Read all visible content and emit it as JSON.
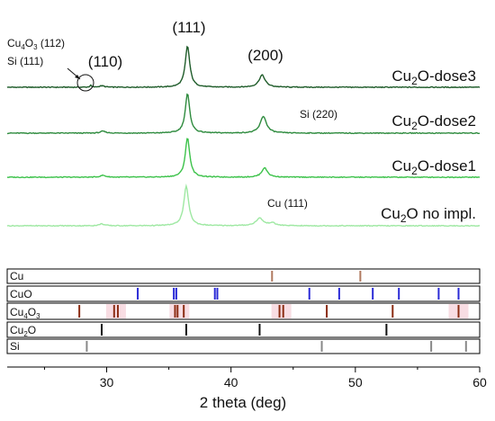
{
  "colors": {
    "dose3": "#1f5c2a",
    "dose2": "#2e8b3e",
    "dose1": "#3cc24a",
    "noimpl": "#9ee8a2",
    "Cu": "#b07a60",
    "CuO": "#2a2ad6",
    "Cu4O3": "#8b2c12",
    "Cu2O": "#111111",
    "Si": "#888888",
    "frame": "#000000",
    "highlight_Cu4O3": "#f8dde3"
  },
  "chart_data": {
    "type": "line",
    "xlabel": "2 theta (deg)",
    "xlim": [
      22,
      60
    ],
    "x_ticks": [
      30,
      40,
      50,
      60
    ],
    "x_tick_labels": [
      "30",
      "40",
      "50",
      "60"
    ],
    "series": [
      {
        "name": "Cu2O-dose3",
        "label_main": "Cu",
        "label_sub": "2",
        "label_rest": "O-dose3",
        "color_key": "dose3",
        "offset": 3,
        "peaks": [
          {
            "x": 36.5,
            "h": 0.88,
            "w": 0.22
          },
          {
            "x": 42.5,
            "h": 0.26,
            "w": 0.3
          },
          {
            "x": 29.6,
            "h": 0.03,
            "w": 0.25
          },
          {
            "x": 28.7,
            "h": 0.04,
            "w": 0.08
          }
        ]
      },
      {
        "name": "Cu2O-dose2",
        "label_main": "Cu",
        "label_sub": "2",
        "label_rest": "O-dose2",
        "color_key": "dose2",
        "offset": 2,
        "peaks": [
          {
            "x": 36.5,
            "h": 0.84,
            "w": 0.22
          },
          {
            "x": 42.6,
            "h": 0.36,
            "w": 0.3
          },
          {
            "x": 29.7,
            "h": 0.04,
            "w": 0.25
          }
        ]
      },
      {
        "name": "Cu2O-dose1",
        "label_main": "Cu",
        "label_sub": "2",
        "label_rest": "O-dose1",
        "color_key": "dose1",
        "offset": 1,
        "peaks": [
          {
            "x": 36.5,
            "h": 0.84,
            "w": 0.22
          },
          {
            "x": 42.7,
            "h": 0.2,
            "w": 0.28
          },
          {
            "x": 29.7,
            "h": 0.04,
            "w": 0.25
          }
        ]
      },
      {
        "name": "Cu2O no impl.",
        "label_main": "Cu",
        "label_sub": "2",
        "label_rest": "O no impl.",
        "color_key": "noimpl",
        "offset": 0,
        "peaks": [
          {
            "x": 36.4,
            "h": 0.84,
            "w": 0.24
          },
          {
            "x": 42.3,
            "h": 0.16,
            "w": 0.35
          },
          {
            "x": 43.3,
            "h": 0.06,
            "w": 0.3
          },
          {
            "x": 29.6,
            "h": 0.04,
            "w": 0.25
          }
        ]
      }
    ],
    "annotations": {
      "peak_111": "(111)",
      "peak_110": "(110)",
      "peak_200": "(200)",
      "cu4o3_112_main": "Cu",
      "cu4o3_112_sub1": "4",
      "cu4o3_112_mid": "O",
      "cu4o3_112_sub2": "3",
      "cu4o3_112_rest": " (112)",
      "si_111": "Si (111)",
      "si_220": "Si (220)",
      "cu_111": "Cu (111)"
    },
    "references": [
      {
        "key": "Cu",
        "label_main": "Cu",
        "sub1": "",
        "mid": "",
        "sub2": "",
        "color_key": "Cu",
        "lines": [
          43.3,
          50.4
        ]
      },
      {
        "key": "CuO",
        "label_main": "CuO",
        "sub1": "",
        "mid": "",
        "sub2": "",
        "color_key": "CuO",
        "lines": [
          32.5,
          35.4,
          35.6,
          38.7,
          38.9,
          46.3,
          48.7,
          51.4,
          53.5,
          56.7,
          58.3
        ]
      },
      {
        "key": "Cu4O3",
        "label_main": "Cu",
        "sub1": "4",
        "mid": "O",
        "sub2": "3",
        "color_key": "Cu4O3",
        "lines": [
          27.8,
          30.6,
          30.9,
          35.5,
          35.7,
          36.2,
          43.9,
          44.2,
          47.7,
          53.0,
          58.3
        ],
        "highlights": [
          30.75,
          35.85,
          44.05,
          58.3
        ]
      },
      {
        "key": "Cu2O",
        "label_main": "Cu",
        "sub1": "2",
        "mid": "O",
        "sub2": "",
        "color_key": "Cu2O",
        "lines": [
          29.6,
          36.4,
          42.3,
          52.5
        ]
      },
      {
        "key": "Si",
        "label_main": "Si",
        "sub1": "",
        "mid": "",
        "sub2": "",
        "color_key": "Si",
        "lines": [
          28.4,
          47.3,
          56.1,
          58.9
        ]
      }
    ]
  }
}
